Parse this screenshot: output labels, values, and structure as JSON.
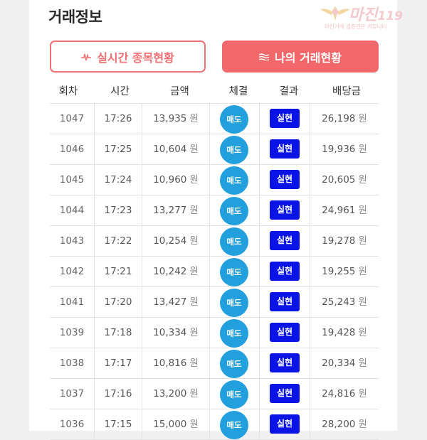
{
  "title": "거래정보",
  "logo": {
    "text": "마진",
    "suffix": "119",
    "sub": "마진거래 검증전문 커뮤니티"
  },
  "buttons": {
    "realtime": {
      "icon": "pulse-icon",
      "label": "실시간 종목현황"
    },
    "mine": {
      "icon": "menu-lines-icon",
      "label": "나의 거래현황"
    }
  },
  "colors": {
    "accent": "#f1676a",
    "sell": "#21a0dd",
    "result": "#0a14e6"
  },
  "table": {
    "headers": [
      "회차",
      "시간",
      "금액",
      "체결",
      "결과",
      "배당금"
    ],
    "unit": "원",
    "rows": [
      {
        "round": "1047",
        "time": "17:26",
        "amount": "13,935",
        "deal": "매도",
        "result": "실현",
        "dividend": "26,198"
      },
      {
        "round": "1046",
        "time": "17:25",
        "amount": "10,604",
        "deal": "매도",
        "result": "실현",
        "dividend": "19,936"
      },
      {
        "round": "1045",
        "time": "17:24",
        "amount": "10,960",
        "deal": "매도",
        "result": "실현",
        "dividend": "20,605"
      },
      {
        "round": "1044",
        "time": "17:23",
        "amount": "13,277",
        "deal": "매도",
        "result": "실현",
        "dividend": "24,961"
      },
      {
        "round": "1043",
        "time": "17:22",
        "amount": "10,254",
        "deal": "매도",
        "result": "실현",
        "dividend": "19,278"
      },
      {
        "round": "1042",
        "time": "17:21",
        "amount": "10,242",
        "deal": "매도",
        "result": "실현",
        "dividend": "19,255"
      },
      {
        "round": "1041",
        "time": "17:20",
        "amount": "13,427",
        "deal": "매도",
        "result": "실현",
        "dividend": "25,243"
      },
      {
        "round": "1039",
        "time": "17:18",
        "amount": "10,334",
        "deal": "매도",
        "result": "실현",
        "dividend": "19,428"
      },
      {
        "round": "1038",
        "time": "17:17",
        "amount": "10,816",
        "deal": "매도",
        "result": "실현",
        "dividend": "20,334"
      },
      {
        "round": "1037",
        "time": "17:16",
        "amount": "13,200",
        "deal": "매도",
        "result": "실현",
        "dividend": "24,816"
      },
      {
        "round": "1036",
        "time": "17:15",
        "amount": "15,000",
        "deal": "매도",
        "result": "실현",
        "dividend": "28,200"
      }
    ]
  }
}
